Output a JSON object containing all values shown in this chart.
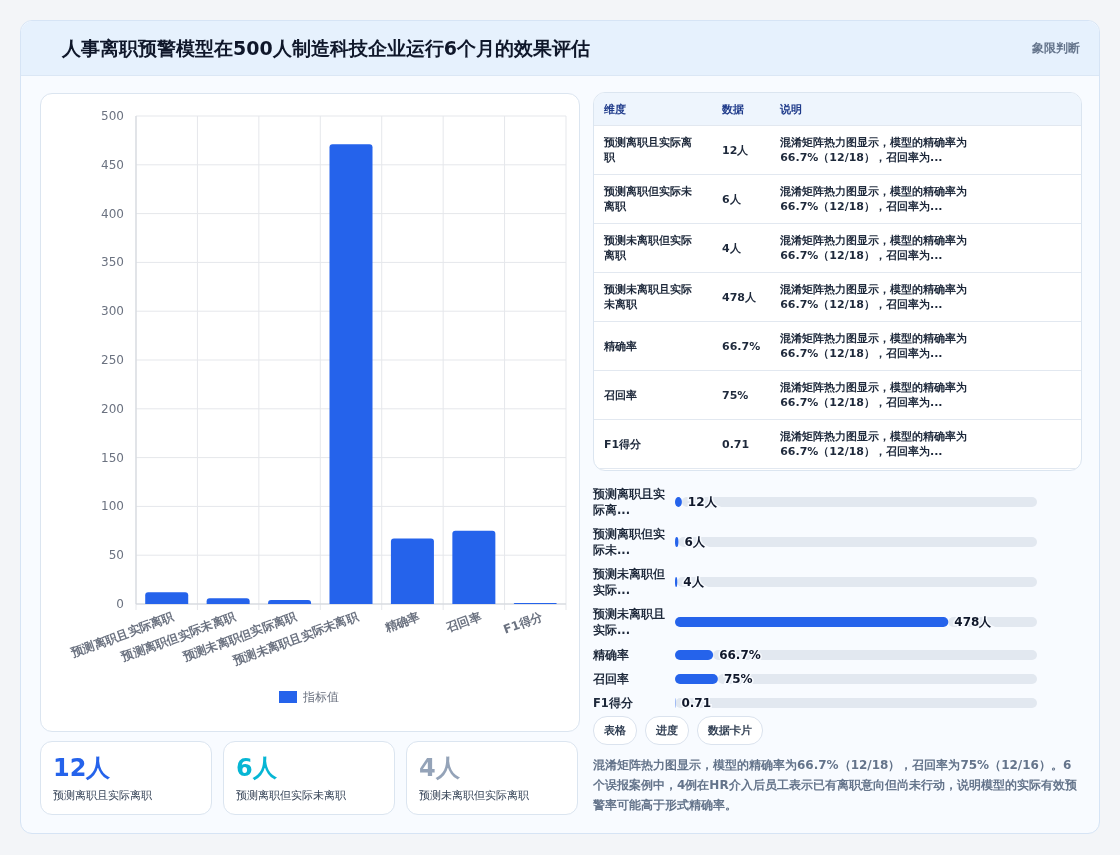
{
  "chart_data": [
    {
      "type": "bar",
      "title": "人事离职预警模型在500人制造科技企业运行6个月的效果评估",
      "annotations": [
        "象限判断"
      ],
      "categories": [
        "预测离职且实际离职",
        "预测离职但实际未离职",
        "预测未离职但实际离职",
        "预测未离职且实际未离职",
        "精确率",
        "召回率",
        "F1得分"
      ],
      "series": [
        {
          "name": "指标值",
          "color": "#2563eb",
          "values": [
            12,
            6,
            4,
            471,
            67,
            75,
            1
          ]
        }
      ],
      "ylim": [
        0,
        500
      ],
      "yticks": [
        0,
        50,
        100,
        150,
        200,
        250,
        300,
        350,
        400,
        450,
        500
      ],
      "grid": true,
      "legend": "bottom"
    },
    {
      "type": "other",
      "annotations": [
        "维度",
        "数据",
        "说明",
        "预测离职且实际离职",
        "12人",
        "混淆矩阵热力图显示，模型的精确率为66.7%（12/18），召回率为...",
        "预测离职但实际未离职",
        "6人",
        "混淆矩阵热力图显示，模型的精确率为66.7%（12/18），召回率为...",
        "预测未离职但实际离职",
        "4人",
        "混淆矩阵热力图显示，模型的精确率为66.7%（12/18），召回率为...",
        "预测未离职且实际未离职",
        "478人",
        "混淆矩阵热力图显示，模型的精确率为66.7%（12/18），召回率为...",
        "精确率",
        "66.7%",
        "混淆矩阵热力图显示，模型的精确率为66.7%（12/18），召回率为...",
        "召回率",
        "75%",
        "混淆矩阵热力图显示，模型的精确率为66.7%（12/18），召回率为...",
        "F1得分",
        "0.71",
        "混淆矩阵热力图显示，模型的精确率为66.7%（12/18），召回率为..."
      ]
    },
    {
      "type": "bar",
      "orientation": "horizontal",
      "categories": [
        "预测离职且实际离...",
        "预测离职但实际未...",
        "预测未离职但实际...",
        "预测未离职且实际...",
        "精确率",
        "召回率",
        "F1得分"
      ],
      "series": [
        {
          "color": "#2563eb",
          "values": [
            12,
            6,
            4,
            478,
            66.7,
            75,
            0.71
          ],
          "value_labels": [
            "12人",
            "6人",
            "4人",
            "478人",
            "66.7%",
            "75%",
            "0.71"
          ]
        }
      ]
    },
    {
      "type": "other",
      "annotations": [
        "表格",
        "进度",
        "数据卡片",
        "混淆矩阵热力图显示，模型的精确率为66.7%（12/18），召回率为75%（12/16）。6个误报案例中，4例在HR介入后员工表示已有离职意向但尚未行动，说明模型的实际有效预警率可能高于形式精确率。"
      ]
    },
    {
      "type": "other",
      "annotations": [
        "12人",
        "预测离职且实际离职",
        "6人",
        "预测离职但实际未离职",
        "4人",
        "预测未离职但实际离职"
      ],
      "colors": [
        "#2563eb",
        "#06b6d4",
        "#94a3b8"
      ]
    }
  ]
}
